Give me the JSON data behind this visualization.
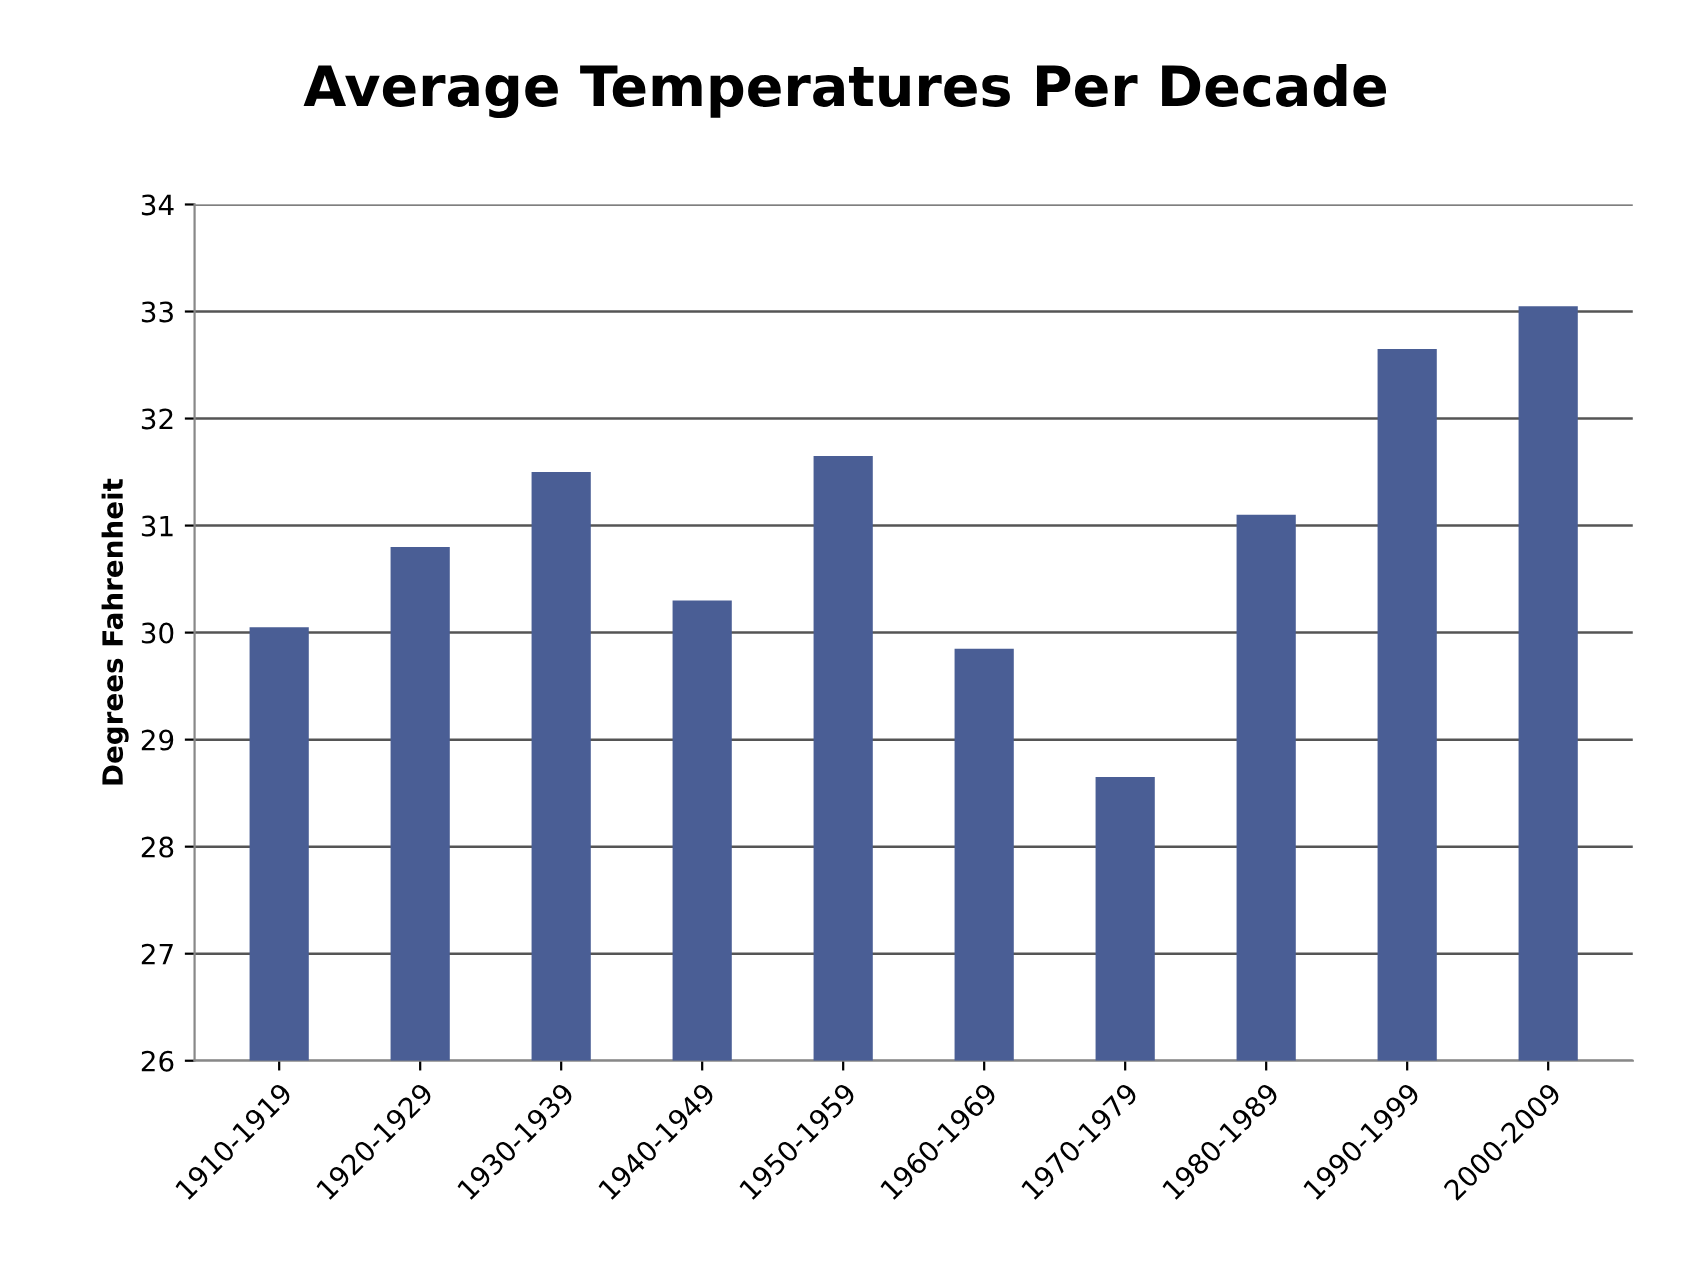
{
  "chart_data": {
    "type": "bar",
    "title": "Average Temperatures Per Decade",
    "ylabel": "Degrees Fahrenheit",
    "categories": [
      "1910-1919",
      "1920-1929",
      "1930-1939",
      "1940-1949",
      "1950-1959",
      "1960-1969",
      "1970-1979",
      "1980-1989",
      "1990-1999",
      "2000-2009"
    ],
    "values": [
      30.05,
      30.8,
      31.5,
      30.3,
      31.65,
      29.85,
      28.65,
      31.1,
      32.65,
      33.05
    ],
    "color": "#4a5e95",
    "ylim": [
      26,
      34
    ],
    "yticks": [
      26,
      27,
      28,
      29,
      30,
      31,
      32,
      33,
      34
    ],
    "grid": "y",
    "legend": false
  }
}
